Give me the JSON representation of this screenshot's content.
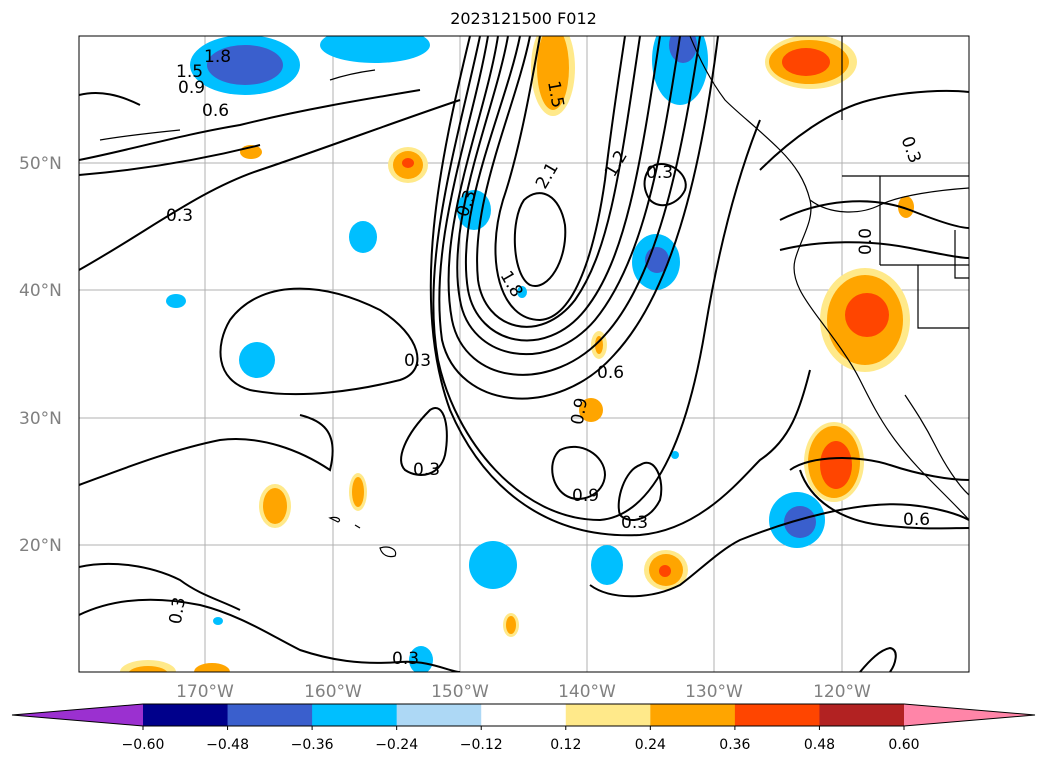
{
  "title": "2023121500 F012",
  "lat_labels": [
    "50°N",
    "40°N",
    "30°N",
    "20°N"
  ],
  "lon_labels": [
    "170°W",
    "160°W",
    "150°W",
    "140°W",
    "130°W",
    "120°W"
  ],
  "colorbar": {
    "ticks": [
      "−0.60",
      "−0.48",
      "−0.36",
      "−0.24",
      "−0.12",
      "0.12",
      "0.24",
      "0.36",
      "0.48",
      "0.60"
    ],
    "colors": [
      "#9b30d0",
      "#00008b",
      "#3a5fcd",
      "#00bfff",
      "#add8f5",
      "#ffffff",
      "#ffe98a",
      "#ffa500",
      "#ff4500",
      "#b22222",
      "#ff85a8"
    ]
  },
  "contour_labels": [
    "1.8",
    "1.5",
    "0.9",
    "0.6",
    "0.3",
    "1.5",
    "2.1",
    "1.2",
    "0.3",
    "0.3",
    "1.8",
    "0.3",
    "0.3",
    "0.6",
    "0.9",
    "0.3",
    "0.9",
    "0.3",
    "0.6",
    "0.3",
    "0.3",
    "0.0",
    "0.3"
  ]
}
